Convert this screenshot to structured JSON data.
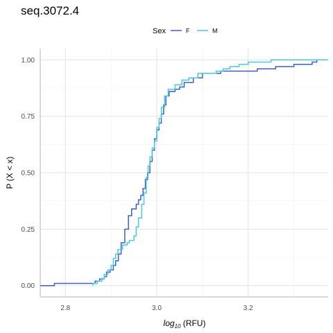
{
  "chart_data": {
    "type": "line",
    "title": "seq.3072.4",
    "xlabel_prefix": "log",
    "xlabel_subscript": "10",
    "xlabel_suffix": " (RFU)",
    "ylabel": "P (X < x)",
    "xlim": [
      2.745,
      3.375
    ],
    "ylim": [
      -0.05,
      1.05
    ],
    "x_ticks": [
      2.8,
      3.0,
      3.2
    ],
    "x_tick_labels": [
      "2.8",
      "3.0",
      "3.2"
    ],
    "y_ticks": [
      0.0,
      0.25,
      0.5,
      0.75,
      1.0
    ],
    "y_tick_labels": [
      "0.00",
      "0.25",
      "0.50",
      "0.75",
      "1.00"
    ],
    "grid": true,
    "legend": {
      "title": "Sex",
      "placement": "top"
    },
    "series": [
      {
        "name": "F",
        "color": "#3a5fcd",
        "points": [
          [
            2.745,
            0.0
          ],
          [
            2.776,
            0.0
          ],
          [
            2.776,
            0.01
          ],
          [
            2.865,
            0.01
          ],
          [
            2.865,
            0.02
          ],
          [
            2.875,
            0.02
          ],
          [
            2.875,
            0.03
          ],
          [
            2.885,
            0.03
          ],
          [
            2.885,
            0.04
          ],
          [
            2.89,
            0.04
          ],
          [
            2.89,
            0.06
          ],
          [
            2.898,
            0.06
          ],
          [
            2.898,
            0.07
          ],
          [
            2.905,
            0.07
          ],
          [
            2.905,
            0.09
          ],
          [
            2.91,
            0.09
          ],
          [
            2.91,
            0.11
          ],
          [
            2.916,
            0.11
          ],
          [
            2.916,
            0.14
          ],
          [
            2.922,
            0.14
          ],
          [
            2.922,
            0.19
          ],
          [
            2.93,
            0.19
          ],
          [
            2.93,
            0.25
          ],
          [
            2.938,
            0.25
          ],
          [
            2.938,
            0.31
          ],
          [
            2.945,
            0.31
          ],
          [
            2.945,
            0.34
          ],
          [
            2.955,
            0.34
          ],
          [
            2.955,
            0.36
          ],
          [
            2.96,
            0.36
          ],
          [
            2.96,
            0.38
          ],
          [
            2.965,
            0.38
          ],
          [
            2.965,
            0.4
          ],
          [
            2.97,
            0.4
          ],
          [
            2.97,
            0.43
          ],
          [
            2.975,
            0.43
          ],
          [
            2.975,
            0.47
          ],
          [
            2.98,
            0.47
          ],
          [
            2.98,
            0.5
          ],
          [
            2.985,
            0.5
          ],
          [
            2.985,
            0.55
          ],
          [
            2.99,
            0.55
          ],
          [
            2.99,
            0.6
          ],
          [
            2.995,
            0.6
          ],
          [
            2.995,
            0.65
          ],
          [
            3.0,
            0.65
          ],
          [
            3.0,
            0.69
          ],
          [
            3.005,
            0.69
          ],
          [
            3.005,
            0.72
          ],
          [
            3.01,
            0.72
          ],
          [
            3.01,
            0.76
          ],
          [
            3.015,
            0.76
          ],
          [
            3.015,
            0.8
          ],
          [
            3.02,
            0.8
          ],
          [
            3.02,
            0.84
          ],
          [
            3.027,
            0.84
          ],
          [
            3.027,
            0.86
          ],
          [
            3.04,
            0.86
          ],
          [
            3.04,
            0.87
          ],
          [
            3.05,
            0.87
          ],
          [
            3.05,
            0.88
          ],
          [
            3.06,
            0.88
          ],
          [
            3.06,
            0.9
          ],
          [
            3.08,
            0.9
          ],
          [
            3.08,
            0.92
          ],
          [
            3.1,
            0.92
          ],
          [
            3.1,
            0.94
          ],
          [
            3.14,
            0.94
          ],
          [
            3.14,
            0.95
          ],
          [
            3.22,
            0.95
          ],
          [
            3.22,
            0.96
          ],
          [
            3.26,
            0.96
          ],
          [
            3.26,
            0.97
          ],
          [
            3.3,
            0.97
          ],
          [
            3.3,
            0.98
          ],
          [
            3.34,
            0.98
          ],
          [
            3.34,
            0.99
          ],
          [
            3.35,
            0.99
          ],
          [
            3.35,
            1.0
          ],
          [
            3.375,
            1.0
          ]
        ]
      },
      {
        "name": "M",
        "color": "#48c9e0",
        "points": [
          [
            2.86,
            0.0
          ],
          [
            2.86,
            0.01
          ],
          [
            2.87,
            0.01
          ],
          [
            2.87,
            0.02
          ],
          [
            2.88,
            0.02
          ],
          [
            2.88,
            0.03
          ],
          [
            2.885,
            0.03
          ],
          [
            2.885,
            0.05
          ],
          [
            2.893,
            0.05
          ],
          [
            2.893,
            0.07
          ],
          [
            2.9,
            0.07
          ],
          [
            2.9,
            0.09
          ],
          [
            2.905,
            0.09
          ],
          [
            2.905,
            0.12
          ],
          [
            2.91,
            0.12
          ],
          [
            2.91,
            0.14
          ],
          [
            2.915,
            0.14
          ],
          [
            2.915,
            0.16
          ],
          [
            2.925,
            0.16
          ],
          [
            2.925,
            0.18
          ],
          [
            2.935,
            0.18
          ],
          [
            2.935,
            0.19
          ],
          [
            2.94,
            0.19
          ],
          [
            2.94,
            0.2
          ],
          [
            2.95,
            0.2
          ],
          [
            2.95,
            0.22
          ],
          [
            2.955,
            0.22
          ],
          [
            2.955,
            0.26
          ],
          [
            2.96,
            0.26
          ],
          [
            2.96,
            0.3
          ],
          [
            2.967,
            0.3
          ],
          [
            2.967,
            0.36
          ],
          [
            2.972,
            0.36
          ],
          [
            2.972,
            0.41
          ],
          [
            2.977,
            0.41
          ],
          [
            2.977,
            0.48
          ],
          [
            2.981,
            0.48
          ],
          [
            2.981,
            0.53
          ],
          [
            2.985,
            0.53
          ],
          [
            2.985,
            0.57
          ],
          [
            2.99,
            0.57
          ],
          [
            2.99,
            0.61
          ],
          [
            2.995,
            0.61
          ],
          [
            2.995,
            0.64
          ],
          [
            3.0,
            0.64
          ],
          [
            3.0,
            0.7
          ],
          [
            3.005,
            0.7
          ],
          [
            3.005,
            0.74
          ],
          [
            3.01,
            0.74
          ],
          [
            3.01,
            0.79
          ],
          [
            3.017,
            0.79
          ],
          [
            3.017,
            0.84
          ],
          [
            3.025,
            0.84
          ],
          [
            3.025,
            0.87
          ],
          [
            3.04,
            0.87
          ],
          [
            3.04,
            0.89
          ],
          [
            3.055,
            0.89
          ],
          [
            3.055,
            0.91
          ],
          [
            3.07,
            0.91
          ],
          [
            3.07,
            0.92
          ],
          [
            3.09,
            0.92
          ],
          [
            3.09,
            0.94
          ],
          [
            3.13,
            0.94
          ],
          [
            3.13,
            0.95
          ],
          [
            3.145,
            0.95
          ],
          [
            3.145,
            0.96
          ],
          [
            3.16,
            0.96
          ],
          [
            3.16,
            0.97
          ],
          [
            3.18,
            0.97
          ],
          [
            3.18,
            0.98
          ],
          [
            3.2,
            0.98
          ],
          [
            3.2,
            0.99
          ],
          [
            3.25,
            0.99
          ],
          [
            3.25,
            1.0
          ],
          [
            3.375,
            1.0
          ]
        ]
      }
    ]
  }
}
